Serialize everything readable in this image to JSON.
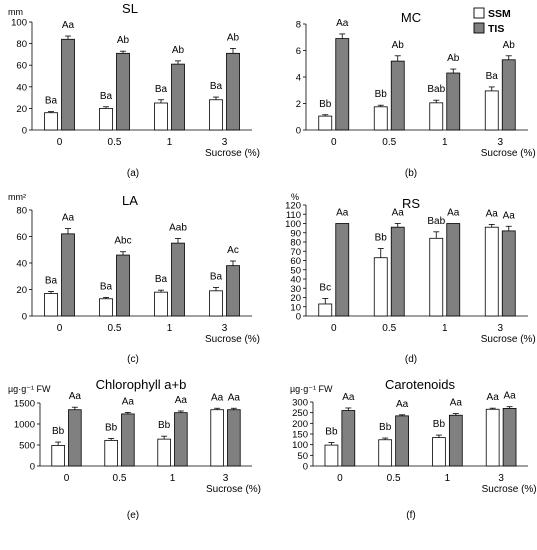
{
  "legend": {
    "entries": [
      {
        "name": "SSM",
        "color": "#ffffff"
      },
      {
        "name": "TIS",
        "color": "#808080"
      }
    ]
  },
  "chart_data": [
    {
      "type": "bar",
      "title": "SL",
      "unit": "mm",
      "panel_label": "(a)",
      "categories": [
        "0",
        "0.5",
        "1",
        "3"
      ],
      "xlabel": "Sucrose (%)",
      "ylim": [
        0,
        100
      ],
      "yticks": [
        "0",
        "20",
        "40",
        "60",
        "80",
        "100"
      ],
      "series": [
        {
          "name": "SSM",
          "values": [
            16,
            20,
            25,
            28
          ],
          "errors": [
            1,
            1.5,
            3,
            2.5
          ],
          "labels": [
            "Ba",
            "Ba",
            "Ba",
            "Ba"
          ]
        },
        {
          "name": "TIS",
          "values": [
            84,
            71,
            61,
            71
          ],
          "errors": [
            3,
            2,
            3,
            4.5
          ],
          "labels": [
            "Aa",
            "Ab",
            "Ab",
            "Ab"
          ]
        }
      ]
    },
    {
      "type": "bar",
      "title": "MC",
      "unit": "",
      "panel_label": "(b)",
      "categories": [
        "0",
        "0.5",
        "1",
        "3"
      ],
      "xlabel": "Sucrose (%)",
      "ylim": [
        0,
        8
      ],
      "yticks": [
        "0",
        "2",
        "4",
        "6",
        "8"
      ],
      "series": [
        {
          "name": "SSM",
          "values": [
            1.05,
            1.75,
            2.05,
            2.95
          ],
          "errors": [
            0.1,
            0.12,
            0.2,
            0.3
          ],
          "labels": [
            "Bb",
            "Bb",
            "Bab",
            "Ba"
          ]
        },
        {
          "name": "TIS",
          "values": [
            6.9,
            5.2,
            4.3,
            5.3
          ],
          "errors": [
            0.35,
            0.4,
            0.3,
            0.3
          ],
          "labels": [
            "Aa",
            "Ab",
            "Ab",
            "Ab"
          ]
        }
      ]
    },
    {
      "type": "bar",
      "title": "LA",
      "unit": "mm²",
      "panel_label": "(c)",
      "categories": [
        "0",
        "0.5",
        "1",
        "3"
      ],
      "xlabel": "Sucrose (%)",
      "ylim": [
        0,
        80
      ],
      "yticks": [
        "0",
        "20",
        "40",
        "60",
        "80"
      ],
      "series": [
        {
          "name": "SSM",
          "values": [
            17,
            13,
            18,
            19
          ],
          "errors": [
            1.5,
            1,
            1.5,
            2.5
          ],
          "labels": [
            "Ba",
            "Ba",
            "Ba",
            "Ba"
          ]
        },
        {
          "name": "TIS",
          "values": [
            62,
            46,
            55,
            38
          ],
          "errors": [
            4,
            2.5,
            3.5,
            3.5
          ],
          "labels": [
            "Aa",
            "Abc",
            "Aab",
            "Ac"
          ]
        }
      ]
    },
    {
      "type": "bar",
      "title": "RS",
      "unit": "%",
      "panel_label": "(d)",
      "categories": [
        "0",
        "0.5",
        "1",
        "3"
      ],
      "xlabel": "Sucrose (%)",
      "ylim": [
        0,
        120
      ],
      "yticks": [
        "0",
        "10",
        "20",
        "30",
        "40",
        "50",
        "60",
        "70",
        "80",
        "90",
        "100",
        "110",
        "120"
      ],
      "series": [
        {
          "name": "SSM",
          "values": [
            13,
            63,
            84,
            96
          ],
          "errors": [
            6,
            10,
            7,
            3
          ],
          "labels": [
            "Bc",
            "Bb",
            "Bab",
            "Aa"
          ]
        },
        {
          "name": "TIS",
          "values": [
            100,
            96,
            100,
            92
          ],
          "errors": [
            0,
            4,
            0,
            5
          ],
          "labels": [
            "Aa",
            "Aa",
            "Aa",
            "Aa"
          ]
        }
      ]
    },
    {
      "type": "bar",
      "title": "Chlorophyll a+b",
      "unit": "µg·g⁻¹ FW",
      "panel_label": "(e)",
      "categories": [
        "0",
        "0.5",
        "1",
        "3"
      ],
      "xlabel": "Sucrose (%)",
      "ylim": [
        0,
        1500
      ],
      "yticks": [
        "0",
        "500",
        "1000",
        "1500"
      ],
      "series": [
        {
          "name": "SSM",
          "values": [
            490,
            610,
            640,
            1340
          ],
          "errors": [
            80,
            45,
            70,
            35
          ],
          "labels": [
            "Bb",
            "Bb",
            "Bb",
            "Aa"
          ]
        },
        {
          "name": "TIS",
          "values": [
            1340,
            1240,
            1270,
            1340
          ],
          "errors": [
            60,
            35,
            40,
            35
          ],
          "labels": [
            "Aa",
            "Aa",
            "Aa",
            "Aa"
          ]
        }
      ]
    },
    {
      "type": "bar",
      "title": "Carotenoids",
      "unit": "µg·g⁻¹ FW",
      "panel_label": "(f)",
      "categories": [
        "0",
        "0.5",
        "1",
        "3"
      ],
      "xlabel": "Sucrose (%)",
      "ylim": [
        0,
        300
      ],
      "yticks": [
        "0",
        "50",
        "100",
        "150",
        "200",
        "250",
        "300"
      ],
      "series": [
        {
          "name": "SSM",
          "values": [
            98,
            123,
            133,
            266
          ],
          "errors": [
            12,
            8,
            12,
            5
          ],
          "labels": [
            "Bb",
            "Bb",
            "Bb",
            "Aa"
          ]
        },
        {
          "name": "TIS",
          "values": [
            260,
            235,
            238,
            270
          ],
          "errors": [
            12,
            5,
            8,
            8
          ],
          "labels": [
            "Aa",
            "Aa",
            "Aa",
            "Aa"
          ]
        }
      ]
    }
  ]
}
